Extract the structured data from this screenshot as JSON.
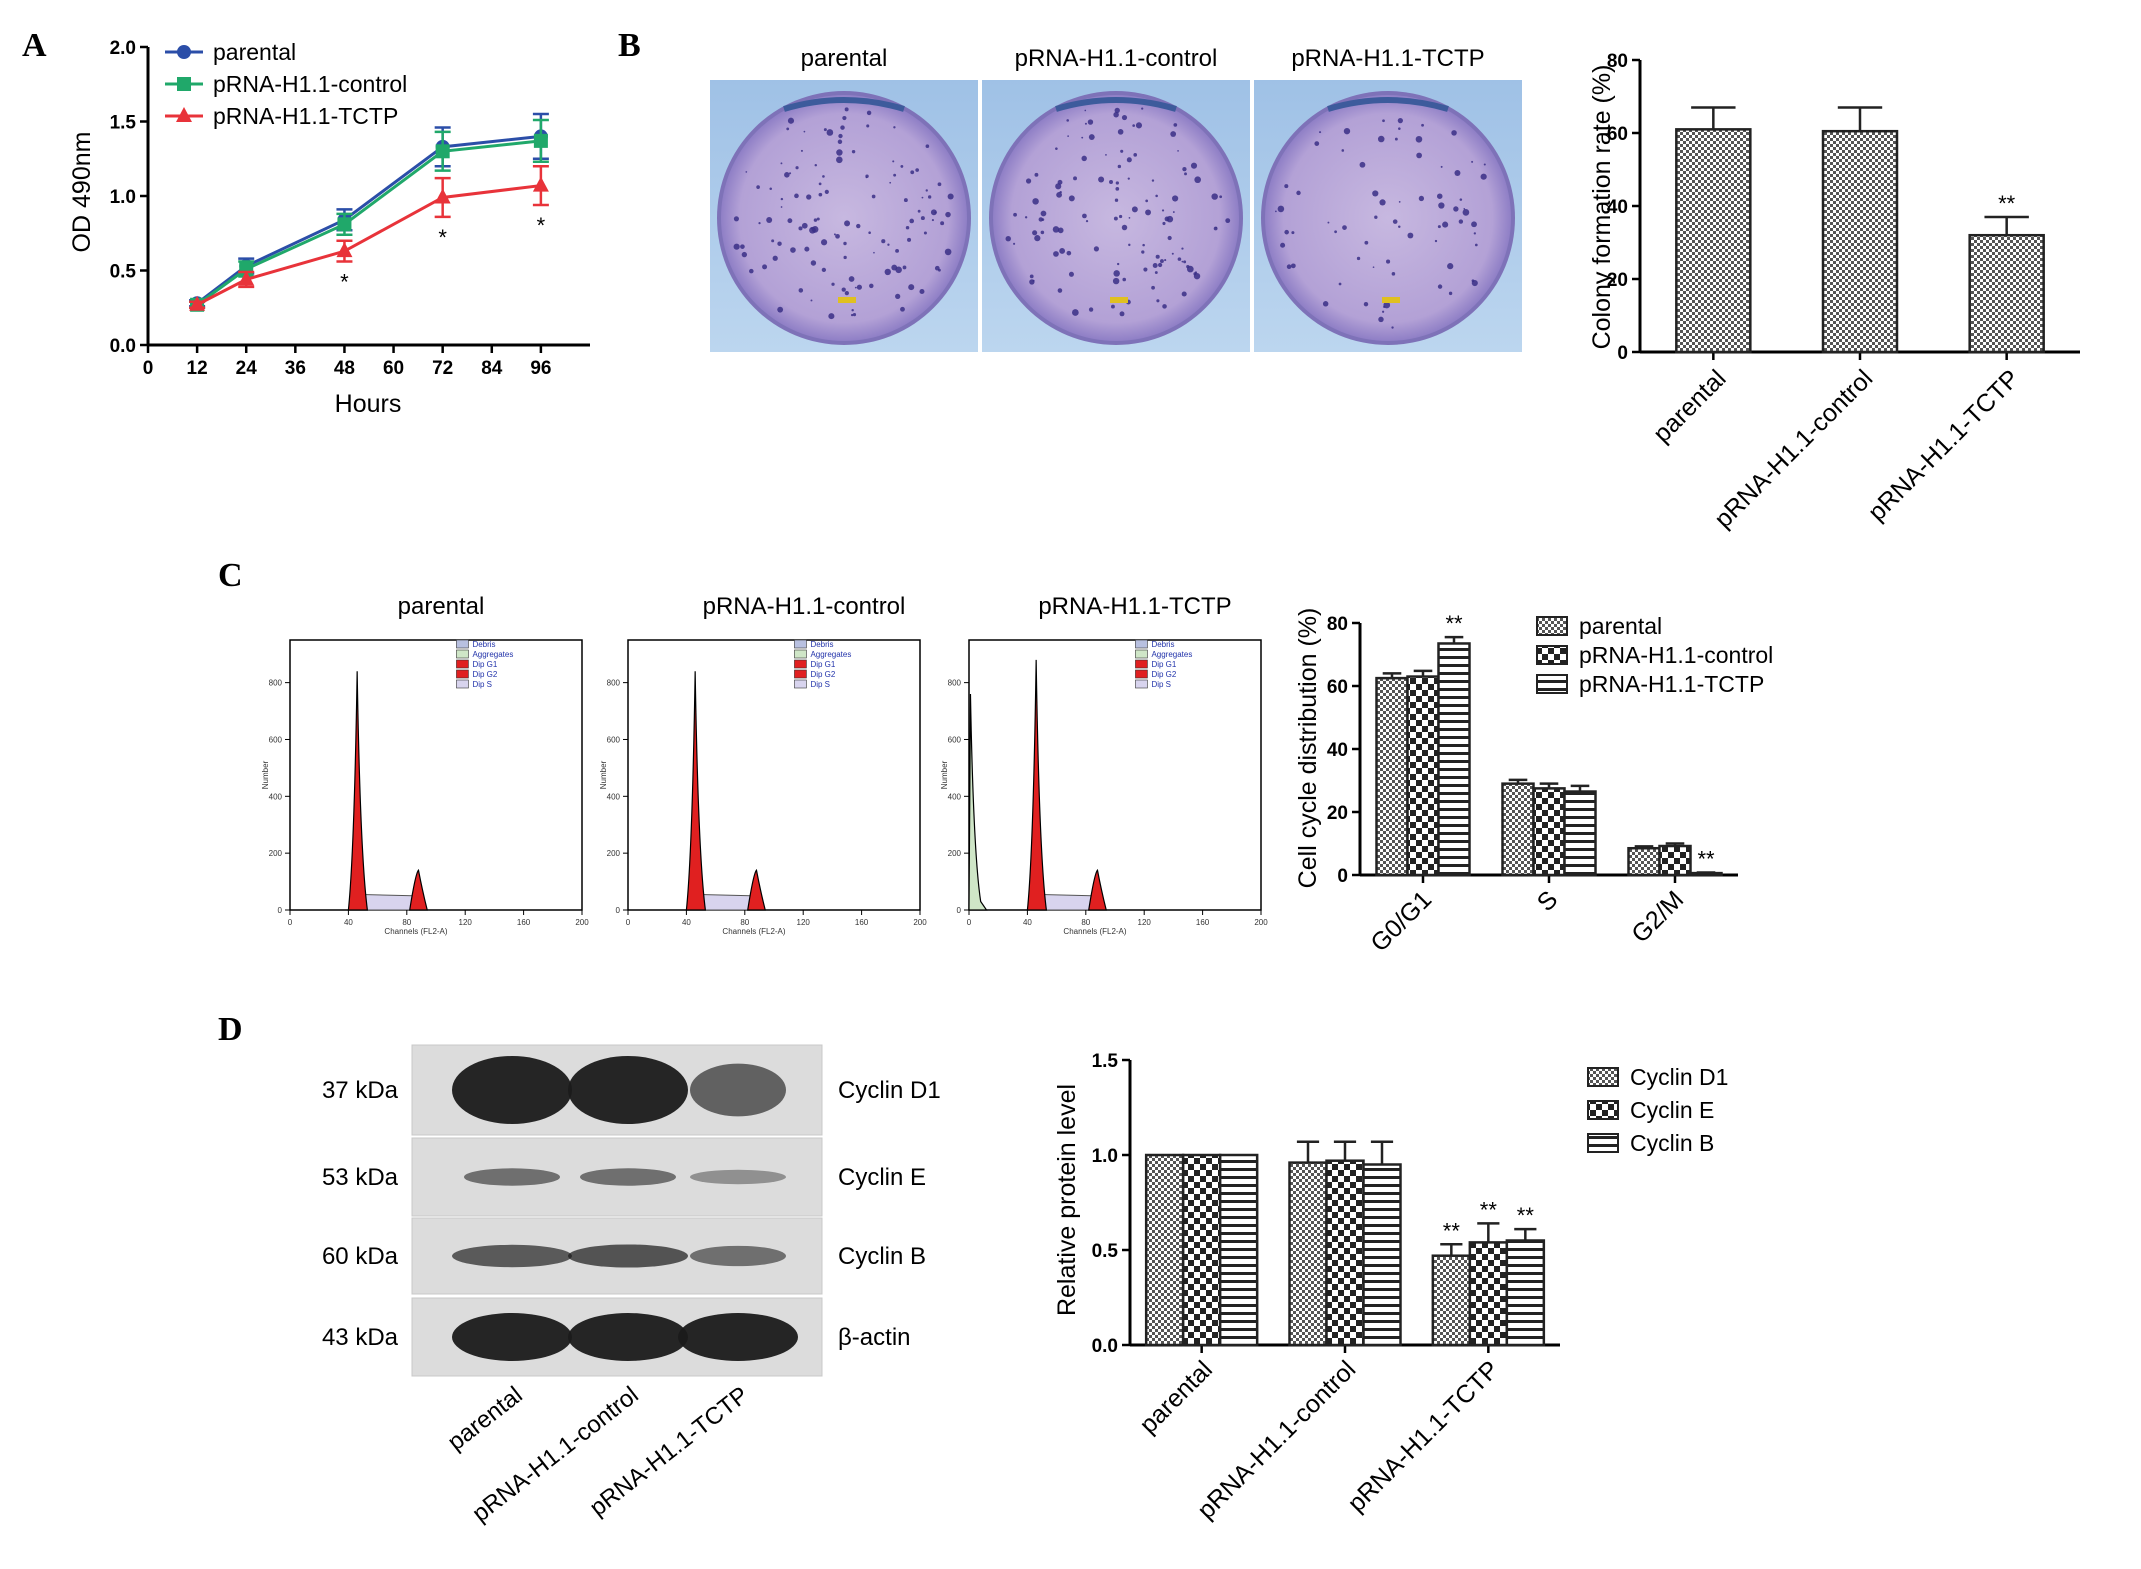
{
  "panel_letters": [
    "A",
    "B",
    "C",
    "D"
  ],
  "colors": {
    "parental": "#2b4ea8",
    "control": "#20a86a",
    "tctp": "#e8333a"
  },
  "chart_data": [
    {
      "id": "A",
      "type": "line",
      "xlabel": "Hours",
      "ylabel": "OD 490nm",
      "xlim": [
        0,
        108
      ],
      "ylim": [
        0,
        2.0
      ],
      "x_ticks": [
        "0",
        "12",
        "24",
        "36",
        "48",
        "60",
        "72",
        "84",
        "96"
      ],
      "y_ticks": [
        "0.0",
        "0.5",
        "1.0",
        "1.5",
        "2.0"
      ],
      "x": [
        12,
        24,
        48,
        72,
        96
      ],
      "series": [
        {
          "name": "parental",
          "marker": "circle",
          "values": [
            0.28,
            0.53,
            0.84,
            1.33,
            1.4
          ],
          "err": [
            0.02,
            0.05,
            0.07,
            0.13,
            0.15
          ]
        },
        {
          "name": "pRNA-H1.1-control",
          "marker": "square",
          "values": [
            0.27,
            0.51,
            0.81,
            1.3,
            1.37
          ],
          "err": [
            0.02,
            0.05,
            0.07,
            0.13,
            0.14
          ]
        },
        {
          "name": "pRNA-H1.1-TCTP",
          "marker": "triangle",
          "values": [
            0.27,
            0.44,
            0.63,
            0.99,
            1.07
          ],
          "err": [
            0.02,
            0.05,
            0.07,
            0.13,
            0.13
          ]
        }
      ],
      "annotations": [
        {
          "x": 48,
          "text": "*"
        },
        {
          "x": 72,
          "text": "*"
        },
        {
          "x": 96,
          "text": "*"
        }
      ],
      "legend": "top-left"
    },
    {
      "id": "B",
      "type": "bar",
      "ylabel": "Colony formation rate (%)",
      "ylim": [
        0,
        80
      ],
      "y_ticks": [
        "0",
        "20",
        "40",
        "60",
        "80"
      ],
      "categories": [
        "parental",
        "pRNA-H1.1-control",
        "pRNA-H1.1-TCTP"
      ],
      "values": [
        61,
        60.5,
        32
      ],
      "err": [
        6,
        6.5,
        5
      ],
      "annotations": [
        "",
        "",
        "**"
      ]
    },
    {
      "id": "C",
      "type": "bar",
      "ylabel": "Cell cycle distribution (%)",
      "ylim": [
        0,
        80
      ],
      "y_ticks": [
        "0",
        "20",
        "40",
        "60",
        "80"
      ],
      "categories": [
        "G0/G1",
        "S",
        "G2/M"
      ],
      "series": [
        {
          "name": "parental",
          "values": [
            62.5,
            29,
            8.5
          ],
          "err": [
            1.5,
            1.2,
            0.6
          ]
        },
        {
          "name": "pRNA-H1.1-control",
          "values": [
            63,
            27.5,
            9.2
          ],
          "err": [
            1.8,
            1.5,
            0.8
          ]
        },
        {
          "name": "pRNA-H1.1-TCTP",
          "values": [
            73.5,
            26.5,
            0.6
          ],
          "err": [
            2,
            1.8,
            0.2
          ]
        }
      ],
      "annotations": [
        [
          "",
          "",
          "**"
        ],
        [
          "",
          "",
          ""
        ],
        [
          "",
          "",
          "**"
        ]
      ],
      "legend": "right"
    },
    {
      "id": "D",
      "type": "bar",
      "ylabel": "Relative protein level",
      "ylim": [
        0,
        1.5
      ],
      "y_ticks": [
        "0.0",
        "0.5",
        "1.0",
        "1.5"
      ],
      "categories": [
        "parental",
        "pRNA-H1.1-control",
        "pRNA-H1.1-TCTP"
      ],
      "series": [
        {
          "name": "Cyclin D1",
          "values": [
            1.0,
            0.96,
            0.47
          ],
          "err": [
            0,
            0.11,
            0.06
          ]
        },
        {
          "name": "Cyclin E",
          "values": [
            1.0,
            0.97,
            0.54
          ],
          "err": [
            0,
            0.1,
            0.1
          ]
        },
        {
          "name": "Cyclin B",
          "values": [
            1.0,
            0.95,
            0.55
          ],
          "err": [
            0,
            0.12,
            0.06
          ]
        }
      ],
      "annotations": [
        [
          "",
          "",
          ""
        ],
        [
          "",
          "",
          ""
        ],
        [
          "**",
          "**",
          "**"
        ]
      ],
      "legend": "right"
    }
  ],
  "panel_b_photos": {
    "labels": [
      "parental",
      "pRNA-H1.1-control",
      "pRNA-H1.1-TCTP"
    ]
  },
  "panel_c_histograms": {
    "titles": [
      "parental",
      "pRNA-H1.1-control",
      "pRNA-H1.1-TCTP"
    ],
    "xlabel": "Channels (FL2-A)",
    "ylabel": "Number",
    "x_ticks": [
      "0",
      "40",
      "80",
      "120",
      "160",
      "200"
    ],
    "y_ticks": [
      "0",
      "200",
      "400",
      "600",
      "800"
    ],
    "legend": [
      "Debris",
      "Aggregates",
      "Dip G1",
      "Dip G2",
      "Dip S"
    ]
  },
  "panel_d_blot": {
    "kda": [
      "37 kDa",
      "53 kDa",
      "60 kDa",
      "43 kDa"
    ],
    "proteins": [
      "Cyclin D1",
      "Cyclin E",
      "Cyclin B",
      "β-actin"
    ],
    "lanes": [
      "parental",
      "pRNA-H1.1-control",
      "pRNA-H1.1-TCTP"
    ]
  }
}
